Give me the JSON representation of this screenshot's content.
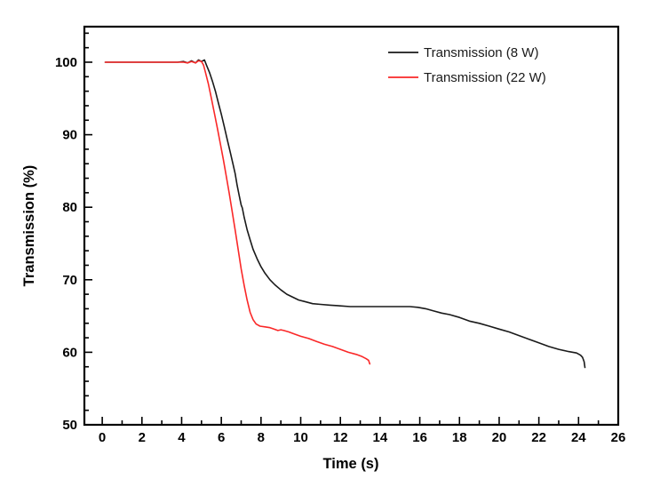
{
  "chart_data": {
    "type": "line",
    "title": "",
    "xlabel": "Time (s)",
    "ylabel": "Transmission (%)",
    "xlim": [
      -0.9,
      26
    ],
    "ylim": [
      50,
      104.9
    ],
    "x_major_ticks": [
      0,
      2,
      4,
      6,
      8,
      10,
      12,
      14,
      16,
      18,
      20,
      22,
      24,
      26
    ],
    "x_minor_ticks": [
      1,
      3,
      5,
      7,
      9,
      11,
      13,
      15,
      17,
      19,
      21,
      23,
      25
    ],
    "y_major_ticks": [
      50,
      60,
      70,
      80,
      90,
      100
    ],
    "y_minor_ticks": [
      52,
      54,
      56,
      58,
      62,
      64,
      66,
      68,
      72,
      74,
      76,
      78,
      82,
      84,
      86,
      88,
      92,
      94,
      96,
      98,
      102,
      104
    ],
    "grid": false,
    "legend_position": "top-right-inside",
    "background_color": "#ffffff",
    "frame_color": "#000000",
    "series": [
      {
        "name": "Transmission (8 W)",
        "color": "#1a1a1a",
        "points": [
          [
            0.15,
            100
          ],
          [
            1,
            100
          ],
          [
            2,
            100
          ],
          [
            3,
            100
          ],
          [
            3.8,
            100
          ],
          [
            4.1,
            100.1
          ],
          [
            4.3,
            99.9
          ],
          [
            4.5,
            100.2
          ],
          [
            4.7,
            99.9
          ],
          [
            4.85,
            100.3
          ],
          [
            5.0,
            100.1
          ],
          [
            5.15,
            100.3
          ],
          [
            5.25,
            99.6
          ],
          [
            5.4,
            98.6
          ],
          [
            5.55,
            97.4
          ],
          [
            5.7,
            96.0
          ],
          [
            5.85,
            94.4
          ],
          [
            6.0,
            92.8
          ],
          [
            6.15,
            91.1
          ],
          [
            6.3,
            89.3
          ],
          [
            6.45,
            87.6
          ],
          [
            6.6,
            85.8
          ],
          [
            6.7,
            84.6
          ],
          [
            6.8,
            83.0
          ],
          [
            6.9,
            81.6
          ],
          [
            7.0,
            80.3
          ],
          [
            7.06,
            79.9
          ],
          [
            7.15,
            78.6
          ],
          [
            7.3,
            76.9
          ],
          [
            7.45,
            75.5
          ],
          [
            7.6,
            74.2
          ],
          [
            7.8,
            72.9
          ],
          [
            8.0,
            71.8
          ],
          [
            8.2,
            70.9
          ],
          [
            8.45,
            70.0
          ],
          [
            8.7,
            69.3
          ],
          [
            9.0,
            68.6
          ],
          [
            9.3,
            68.0
          ],
          [
            9.6,
            67.6
          ],
          [
            9.9,
            67.2
          ],
          [
            10.2,
            67.0
          ],
          [
            10.6,
            66.7
          ],
          [
            11.0,
            66.6
          ],
          [
            11.5,
            66.5
          ],
          [
            12.0,
            66.4
          ],
          [
            12.5,
            66.3
          ],
          [
            13.0,
            66.3
          ],
          [
            13.5,
            66.3
          ],
          [
            14.0,
            66.3
          ],
          [
            14.5,
            66.3
          ],
          [
            15.0,
            66.3
          ],
          [
            15.5,
            66.3
          ],
          [
            15.9,
            66.2
          ],
          [
            16.3,
            66.0
          ],
          [
            16.7,
            65.7
          ],
          [
            17.1,
            65.4
          ],
          [
            17.5,
            65.2
          ],
          [
            18.0,
            64.8
          ],
          [
            18.5,
            64.3
          ],
          [
            19.0,
            64.0
          ],
          [
            19.5,
            63.6
          ],
          [
            20.0,
            63.2
          ],
          [
            20.5,
            62.8
          ],
          [
            21.0,
            62.3
          ],
          [
            21.5,
            61.8
          ],
          [
            22.0,
            61.3
          ],
          [
            22.5,
            60.8
          ],
          [
            23.0,
            60.4
          ],
          [
            23.5,
            60.1
          ],
          [
            23.9,
            59.9
          ],
          [
            24.1,
            59.6
          ],
          [
            24.2,
            59.3
          ],
          [
            24.28,
            58.7
          ],
          [
            24.32,
            57.9
          ]
        ]
      },
      {
        "name": "Transmission (22 W)",
        "color": "#fa2828",
        "points": [
          [
            0.15,
            100
          ],
          [
            1,
            100
          ],
          [
            2,
            100
          ],
          [
            3,
            100
          ],
          [
            3.8,
            100
          ],
          [
            4.1,
            100.0
          ],
          [
            4.3,
            99.9
          ],
          [
            4.5,
            100.1
          ],
          [
            4.7,
            99.9
          ],
          [
            4.85,
            100.2
          ],
          [
            5.0,
            100.1
          ],
          [
            5.1,
            99.6
          ],
          [
            5.2,
            98.6
          ],
          [
            5.35,
            97.0
          ],
          [
            5.5,
            95.0
          ],
          [
            5.65,
            93.0
          ],
          [
            5.8,
            90.9
          ],
          [
            5.95,
            88.8
          ],
          [
            6.1,
            86.6
          ],
          [
            6.25,
            84.3
          ],
          [
            6.4,
            81.9
          ],
          [
            6.55,
            79.4
          ],
          [
            6.7,
            76.8
          ],
          [
            6.85,
            74.1
          ],
          [
            7.0,
            71.5
          ],
          [
            7.15,
            69.2
          ],
          [
            7.3,
            67.2
          ],
          [
            7.45,
            65.5
          ],
          [
            7.6,
            64.5
          ],
          [
            7.75,
            63.9
          ],
          [
            7.95,
            63.6
          ],
          [
            8.2,
            63.5
          ],
          [
            8.45,
            63.4
          ],
          [
            8.65,
            63.2
          ],
          [
            8.85,
            63.0
          ],
          [
            9.0,
            63.1
          ],
          [
            9.15,
            63.0
          ],
          [
            9.4,
            62.8
          ],
          [
            9.7,
            62.5
          ],
          [
            10.0,
            62.2
          ],
          [
            10.4,
            61.9
          ],
          [
            10.8,
            61.5
          ],
          [
            11.2,
            61.1
          ],
          [
            11.6,
            60.8
          ],
          [
            12.0,
            60.4
          ],
          [
            12.4,
            60.0
          ],
          [
            12.8,
            59.7
          ],
          [
            13.1,
            59.4
          ],
          [
            13.3,
            59.1
          ],
          [
            13.42,
            58.9
          ],
          [
            13.48,
            58.4
          ]
        ]
      }
    ],
    "legend": {
      "entries": [
        "Transmission (8 W)",
        "Transmission (22 W)"
      ]
    }
  }
}
